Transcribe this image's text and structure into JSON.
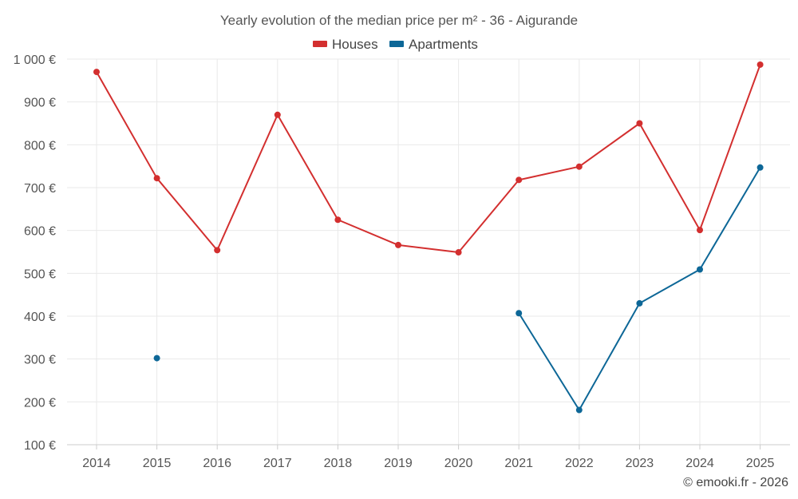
{
  "chart_data": {
    "type": "line",
    "title": "Yearly evolution of the median price per m² - 36 - Aigurande",
    "categories": [
      "2014",
      "2015",
      "2016",
      "2017",
      "2018",
      "2019",
      "2020",
      "2021",
      "2022",
      "2023",
      "2024",
      "2025"
    ],
    "series": [
      {
        "name": "Houses",
        "color": "#d32f2f",
        "values": [
          970,
          722,
          554,
          870,
          625,
          566,
          549,
          718,
          749,
          850,
          601,
          987
        ]
      },
      {
        "name": "Apartments",
        "color": "#0d6797",
        "values": [
          null,
          302,
          null,
          null,
          null,
          null,
          null,
          407,
          181,
          430,
          509,
          747
        ]
      }
    ],
    "ylim": [
      100,
      1000
    ],
    "y_ticks": [
      100,
      200,
      300,
      400,
      500,
      600,
      700,
      800,
      900,
      1000
    ],
    "y_tick_labels": [
      "100 €",
      "200 €",
      "300 €",
      "400 €",
      "500 €",
      "600 €",
      "700 €",
      "800 €",
      "900 €",
      "1 000 €"
    ],
    "xlabel": "",
    "ylabel": "",
    "legend_position": "top-center",
    "grid": true
  },
  "credit": "© emooki.fr - 2026"
}
